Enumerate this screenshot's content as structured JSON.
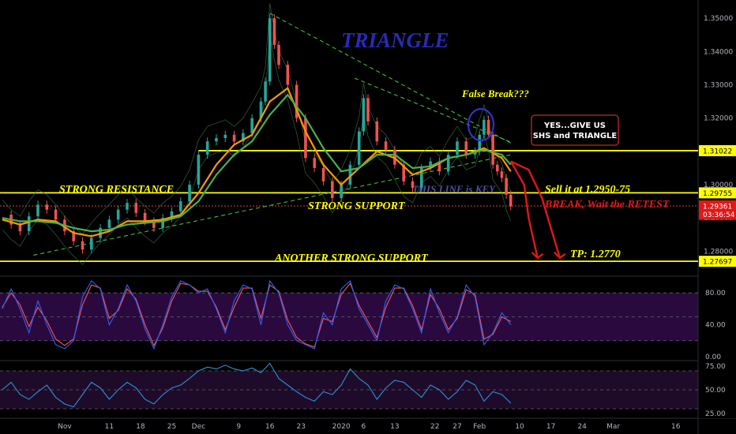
{
  "chart_data": {
    "type": "line",
    "title": "TRIANGLE",
    "price_axis": {
      "ylim": [
        1.2725,
        1.3555
      ],
      "ticks": [
        "1.35000",
        "1.34000",
        "1.33000",
        "1.32000",
        "1.31000",
        "1.30000",
        "1.29000",
        "1.28000"
      ],
      "ticks_values": [
        1.35,
        1.34,
        1.33,
        1.32,
        1.31,
        1.3,
        1.29,
        1.28
      ]
    },
    "price_tags": [
      {
        "label": "1.31022",
        "value": 1.31022,
        "style": "yellow"
      },
      {
        "label": "1.29755",
        "value": 1.29755,
        "style": "yellow"
      },
      {
        "label": "1.29361",
        "value": 1.29361,
        "style": "red"
      },
      {
        "label": "03:36:54",
        "value": 1.2911,
        "style": "red"
      },
      {
        "label": "1.27697",
        "value": 1.27697,
        "style": "yellow"
      }
    ],
    "x_axis": {
      "ticks": [
        "Nov",
        "11",
        "18",
        "25",
        "Dec",
        "9",
        "16",
        "23",
        "2020",
        "6",
        "13",
        "22",
        "27",
        "Feb",
        "10",
        "17",
        "24",
        "Mar",
        "16"
      ],
      "tick_days": [
        0,
        10,
        17,
        24,
        30,
        39,
        46,
        53,
        62,
        67,
        74,
        83,
        88,
        93,
        102,
        109,
        116,
        123,
        137
      ],
      "xlim_days": [
        -14.5,
        142
      ]
    },
    "horizontal_levels": [
      {
        "value": 1.31022,
        "color": "#ffff00"
      },
      {
        "value": 1.29755,
        "color": "#ffff00"
      },
      {
        "value": 1.27697,
        "color": "#ffff00"
      },
      {
        "value": 1.29361,
        "color": "#e04040",
        "style": "dotted"
      }
    ],
    "trendlines": [
      {
        "from": [
          46,
          1.3515
        ],
        "to": [
          100,
          1.3125
        ],
        "color": "#3fbf3f",
        "style": "dashed"
      },
      {
        "from": [
          65,
          1.332
        ],
        "to": [
          100,
          1.3128
        ],
        "color": "#3fbf3f",
        "style": "dashed"
      },
      {
        "from": [
          -7,
          1.2788
        ],
        "to": [
          100,
          1.309
        ],
        "color": "#3fbf3f",
        "style": "dashed"
      }
    ],
    "price_series": {
      "name": "",
      "x": [
        -14,
        -12,
        -10,
        -8,
        -6,
        -4,
        -2,
        0,
        2,
        4,
        6,
        8,
        10,
        12,
        14,
        16,
        18,
        20,
        22,
        24,
        26,
        28,
        30,
        32,
        34,
        36,
        38,
        40,
        42,
        44,
        45,
        46,
        47,
        48,
        50,
        52,
        54,
        56,
        58,
        60,
        62,
        64,
        66,
        67,
        68,
        70,
        72,
        74,
        76,
        78,
        80,
        82,
        84,
        86,
        88,
        90,
        92,
        93,
        94,
        95,
        96,
        97,
        98,
        99,
        100
      ],
      "y": [
        1.291,
        1.288,
        1.286,
        1.2905,
        1.294,
        1.2925,
        1.2895,
        1.286,
        1.283,
        1.2805,
        1.284,
        1.287,
        1.2895,
        1.2925,
        1.2945,
        1.2915,
        1.289,
        1.287,
        1.29,
        1.292,
        1.295,
        1.3,
        1.309,
        1.313,
        1.314,
        1.315,
        1.313,
        1.3155,
        1.32,
        1.325,
        1.331,
        1.35,
        1.342,
        1.336,
        1.33,
        1.32,
        1.308,
        1.305,
        1.301,
        1.296,
        1.3,
        1.306,
        1.316,
        1.326,
        1.319,
        1.313,
        1.3105,
        1.306,
        1.301,
        1.299,
        1.305,
        1.307,
        1.304,
        1.309,
        1.313,
        1.309,
        1.31,
        1.315,
        1.3195,
        1.315,
        1.306,
        1.304,
        1.302,
        1.297,
        1.2935
      ]
    },
    "ma_series": [
      {
        "name": "",
        "color": "#ff9800",
        "x": [
          -14,
          -10,
          -6,
          -2,
          2,
          6,
          10,
          14,
          18,
          22,
          26,
          30,
          34,
          38,
          42,
          46,
          50,
          54,
          58,
          62,
          66,
          70,
          74,
          78,
          82,
          86,
          90,
          94,
          98,
          100
        ],
        "y": [
          1.2895,
          1.288,
          1.2895,
          1.289,
          1.2855,
          1.2845,
          1.286,
          1.289,
          1.289,
          1.2895,
          1.291,
          1.2975,
          1.306,
          1.312,
          1.315,
          1.325,
          1.329,
          1.316,
          1.306,
          1.3,
          1.305,
          1.31,
          1.308,
          1.303,
          1.305,
          1.308,
          1.309,
          1.311,
          1.308,
          1.304
        ]
      },
      {
        "name": "",
        "color": "#4caf50",
        "x": [
          -14,
          -10,
          -6,
          -2,
          2,
          6,
          10,
          14,
          18,
          22,
          26,
          30,
          34,
          38,
          42,
          46,
          50,
          54,
          58,
          62,
          66,
          70,
          74,
          78,
          82,
          86,
          90,
          94,
          98,
          100
        ],
        "y": [
          1.29,
          1.289,
          1.289,
          1.2885,
          1.287,
          1.286,
          1.2865,
          1.288,
          1.2885,
          1.289,
          1.2905,
          1.295,
          1.303,
          1.309,
          1.313,
          1.321,
          1.327,
          1.32,
          1.311,
          1.304,
          1.305,
          1.309,
          1.309,
          1.305,
          1.3055,
          1.308,
          1.309,
          1.3105,
          1.309,
          1.306
        ]
      }
    ],
    "projection": {
      "color": "#e01818",
      "points": [
        [
          100,
          1.307
        ],
        [
          103,
          1.3
        ],
        [
          104,
          1.29
        ],
        [
          106,
          1.278
        ]
      ],
      "second": [
        [
          100,
          1.307
        ],
        [
          104,
          1.3045
        ],
        [
          107,
          1.296
        ],
        [
          111,
          1.278
        ]
      ]
    },
    "stochastic": {
      "ylim": [
        -5,
        100
      ],
      "ticks": [
        "80.00",
        "40.00",
        "0.00"
      ],
      "ticks_values": [
        80,
        40,
        0
      ],
      "band": [
        20,
        80
      ],
      "x": [
        -14,
        -12,
        -10,
        -8,
        -6,
        -4,
        -2,
        0,
        2,
        4,
        6,
        8,
        10,
        12,
        14,
        16,
        18,
        20,
        22,
        24,
        26,
        28,
        30,
        32,
        34,
        36,
        38,
        40,
        42,
        44,
        46,
        48,
        50,
        52,
        54,
        56,
        58,
        60,
        62,
        64,
        66,
        68,
        70,
        72,
        74,
        76,
        78,
        80,
        82,
        84,
        86,
        88,
        90,
        92,
        94,
        96,
        98,
        100
      ],
      "k": [
        60,
        85,
        60,
        30,
        70,
        40,
        15,
        10,
        20,
        75,
        95,
        85,
        40,
        60,
        90,
        70,
        35,
        10,
        40,
        75,
        95,
        90,
        80,
        85,
        60,
        30,
        70,
        90,
        85,
        40,
        95,
        80,
        40,
        20,
        15,
        10,
        55,
        40,
        85,
        95,
        60,
        40,
        20,
        70,
        90,
        85,
        60,
        30,
        85,
        55,
        30,
        50,
        90,
        75,
        15,
        30,
        55,
        40
      ],
      "d": [
        62,
        80,
        65,
        38,
        62,
        45,
        22,
        14,
        22,
        65,
        90,
        86,
        48,
        58,
        85,
        72,
        40,
        14,
        36,
        70,
        92,
        90,
        82,
        82,
        62,
        34,
        62,
        86,
        86,
        48,
        90,
        82,
        46,
        24,
        16,
        12,
        48,
        44,
        78,
        92,
        64,
        44,
        24,
        62,
        86,
        86,
        64,
        34,
        78,
        60,
        34,
        48,
        84,
        78,
        22,
        28,
        50,
        44
      ]
    },
    "rsi": {
      "ylim": [
        20,
        80
      ],
      "ticks": [
        "75.00",
        "50.00",
        "25.00"
      ],
      "ticks_values": [
        75,
        50,
        25
      ],
      "band": [
        30,
        70
      ],
      "x": [
        -14,
        -12,
        -10,
        -8,
        -6,
        -4,
        -2,
        0,
        2,
        4,
        6,
        8,
        10,
        12,
        14,
        16,
        18,
        20,
        22,
        24,
        26,
        28,
        30,
        32,
        34,
        36,
        38,
        40,
        42,
        44,
        46,
        48,
        50,
        52,
        54,
        56,
        58,
        60,
        62,
        64,
        66,
        68,
        70,
        72,
        74,
        76,
        78,
        80,
        82,
        84,
        86,
        88,
        90,
        92,
        94,
        96,
        98,
        100
      ],
      "y": [
        50,
        58,
        45,
        40,
        48,
        55,
        42,
        35,
        32,
        45,
        58,
        52,
        40,
        50,
        58,
        52,
        40,
        35,
        45,
        52,
        55,
        62,
        70,
        74,
        72,
        76,
        72,
        70,
        73,
        68,
        78,
        62,
        55,
        48,
        42,
        38,
        48,
        45,
        55,
        72,
        62,
        55,
        40,
        52,
        60,
        58,
        50,
        42,
        55,
        50,
        40,
        48,
        60,
        55,
        38,
        48,
        45,
        36
      ]
    }
  },
  "annotations": {
    "title": "TRIANGLE",
    "false_break": "False Break???",
    "strong_resistance": "STRONG RESISTANCE",
    "strong_support": "STRONG SUPPORT",
    "this_line": "THIS LINE is KEY",
    "another_support": "ANOTHER STRONG SUPPORT",
    "sell": "Sell it at 1.2950-75",
    "break_retest": "BREAK, Wait the RETEST",
    "tp": "TP: 1.2770",
    "callout_line1": "YES...GIVE US",
    "callout_line2": "SHS and TRIANGLE"
  },
  "colors": {
    "background": "#000000",
    "yellow": "#ffff00",
    "red": "#e01818",
    "green": "#3fbf3f",
    "stoch_bg": "#2a0a3e",
    "rsi_bg": "#1e0b29",
    "title": "#2a2ab8"
  }
}
